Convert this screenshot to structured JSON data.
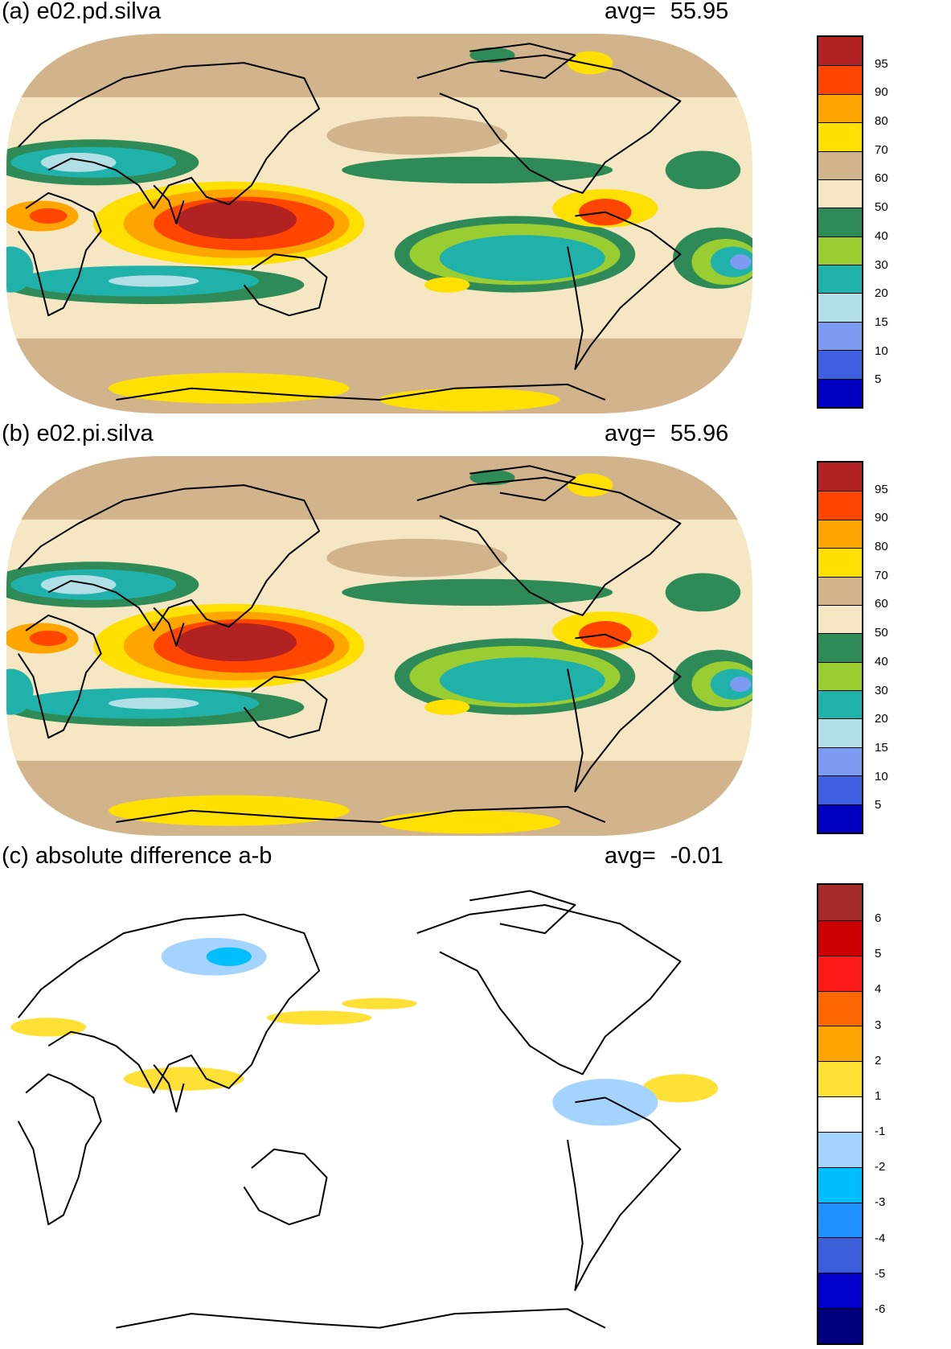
{
  "panels": [
    {
      "id": "a",
      "title": "(a) e02.pd.silva",
      "avg_label": "avg=",
      "avg_value": "55.95",
      "map_style": "field",
      "colorbar": {
        "colors": [
          "#0000c0",
          "#3e5fe0",
          "#7b9cf0",
          "#b0e0e6",
          "#20b2aa",
          "#9acd32",
          "#2e8b57",
          "#f5e6c4",
          "#d2b48c",
          "#ffe000",
          "#ffa500",
          "#ff4500",
          "#b22222"
        ],
        "labels": [
          "5",
          "10",
          "15",
          "20",
          "30",
          "40",
          "50",
          "60",
          "70",
          "80",
          "90",
          "95"
        ]
      }
    },
    {
      "id": "b",
      "title": "(b) e02.pi.silva",
      "avg_label": "avg=",
      "avg_value": "55.96",
      "map_style": "field",
      "colorbar": {
        "colors": [
          "#0000c0",
          "#3e5fe0",
          "#7b9cf0",
          "#b0e0e6",
          "#20b2aa",
          "#9acd32",
          "#2e8b57",
          "#f5e6c4",
          "#d2b48c",
          "#ffe000",
          "#ffa500",
          "#ff4500",
          "#b22222"
        ],
        "labels": [
          "5",
          "10",
          "15",
          "20",
          "30",
          "40",
          "50",
          "60",
          "70",
          "80",
          "90",
          "95"
        ]
      }
    },
    {
      "id": "c",
      "title": "(c) absolute difference a-b",
      "avg_label": "avg=",
      "avg_value": "-0.01",
      "map_style": "difference",
      "colorbar": {
        "colors": [
          "#00007f",
          "#0000c8",
          "#3a5fd8",
          "#1e90ff",
          "#00bfff",
          "#a4d3ff",
          "#ffffff",
          "#ffe135",
          "#ffa500",
          "#ff6600",
          "#ff1a1a",
          "#cc0000",
          "#a52a2a"
        ],
        "labels": [
          "-6",
          "-5",
          "-4",
          "-3",
          "-2",
          "-1",
          "1",
          "2",
          "3",
          "4",
          "5",
          "6"
        ]
      }
    }
  ]
}
